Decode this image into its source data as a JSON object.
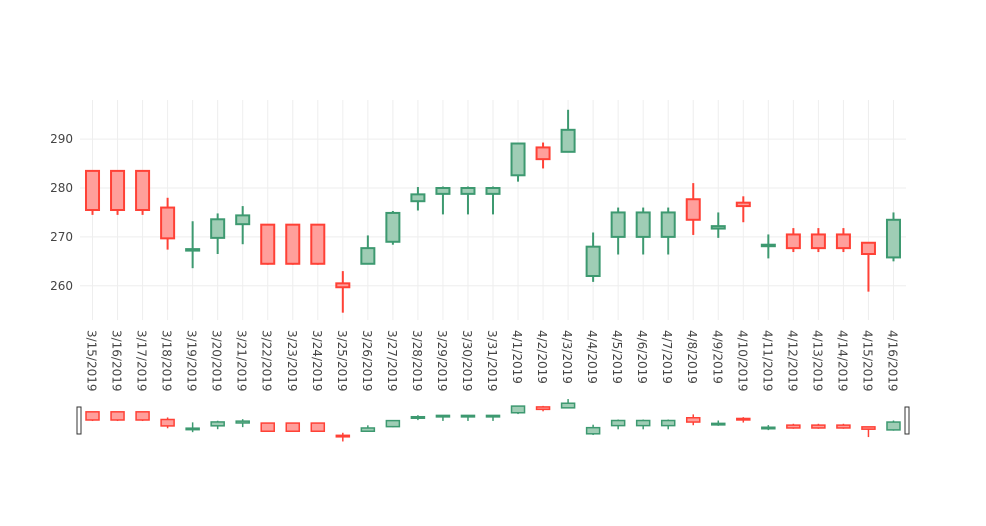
{
  "chart_data": {
    "type": "candlestick",
    "title": "",
    "xlabel": "",
    "ylabel": "",
    "ylim": [
      253,
      298
    ],
    "y_ticks": [
      260,
      270,
      280,
      290
    ],
    "grid": true,
    "legend": "none",
    "rangeslider": true,
    "colors": {
      "increasing_line": "#3d9970",
      "increasing_fill": "#9fcdb5",
      "decreasing_line": "#ff4136",
      "decreasing_fill": "#ff9f9b",
      "grid": "#eeeeee",
      "tick_text": "#444444"
    },
    "categories": [
      "3/15/2019",
      "3/16/2019",
      "3/17/2019",
      "3/18/2019",
      "3/19/2019",
      "3/20/2019",
      "3/21/2019",
      "3/22/2019",
      "3/23/2019",
      "3/24/2019",
      "3/25/2019",
      "3/26/2019",
      "3/27/2019",
      "3/28/2019",
      "3/29/2019",
      "3/30/2019",
      "3/31/2019",
      "4/1/2019",
      "4/2/2019",
      "4/3/2019",
      "4/4/2019",
      "4/5/2019",
      "4/6/2019",
      "4/7/2019",
      "4/8/2019",
      "4/9/2019",
      "4/10/2019",
      "4/11/2019",
      "4/12/2019",
      "4/13/2019",
      "4/14/2019",
      "4/15/2019",
      "4/16/2019"
    ],
    "series": [
      {
        "open": [
          283.5,
          283.5,
          283.5,
          276.0,
          267.5,
          269.8,
          272.6,
          272.5,
          272.5,
          272.5,
          260.5,
          264.5,
          269.0,
          277.3,
          278.8,
          278.8,
          278.8,
          282.6,
          288.3,
          287.4,
          262.0,
          270.0,
          270.0,
          270.0,
          277.7,
          271.7,
          277.0,
          268.4,
          270.5,
          270.5,
          270.5,
          268.8,
          265.8
        ],
        "high": [
          283.5,
          283.5,
          283.5,
          278.0,
          273.2,
          274.8,
          276.3,
          272.5,
          272.5,
          272.5,
          263.0,
          270.3,
          275.3,
          280.2,
          280.3,
          280.3,
          280.3,
          289.3,
          289.3,
          296.0,
          270.9,
          276.0,
          276.0,
          276.0,
          281.0,
          275.0,
          278.3,
          270.5,
          271.8,
          271.8,
          271.8,
          268.8,
          275.0
        ],
        "low": [
          274.5,
          274.5,
          274.5,
          267.4,
          263.6,
          266.5,
          268.5,
          264.3,
          264.3,
          264.3,
          254.5,
          264.4,
          268.4,
          275.4,
          274.6,
          274.6,
          274.6,
          281.3,
          284.0,
          287.4,
          260.8,
          266.4,
          266.4,
          266.4,
          270.4,
          269.8,
          273.0,
          265.6,
          266.9,
          266.9,
          266.9,
          258.8,
          265.0
        ],
        "close": [
          275.5,
          275.5,
          275.5,
          269.7,
          267.5,
          273.6,
          274.4,
          264.5,
          264.5,
          264.5,
          259.7,
          267.7,
          274.9,
          278.7,
          280.0,
          280.0,
          280.0,
          289.1,
          285.9,
          291.9,
          268.0,
          275.0,
          275.0,
          275.0,
          273.5,
          272.2,
          276.3,
          268.4,
          267.7,
          267.7,
          267.7,
          266.5,
          273.5
        ]
      }
    ]
  }
}
